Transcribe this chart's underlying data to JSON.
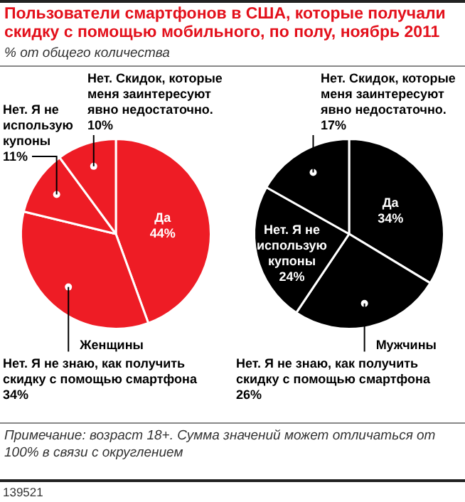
{
  "chart_data": [
    {
      "type": "pie",
      "title": "Пользователи смартфонов в США, которые получали скидку с помощью мобильного, по полу, ноябрь 2011",
      "subtitle": "% от общего количества",
      "xlabel": "Женщины",
      "categories": [
        "Да",
        "Нет. Я не знаю, как получить скидку с помощью смартфона",
        "Нет. Я не использую купоны",
        "Нет. Скидок, которые меня заинтересуют явно недостаточно."
      ],
      "values": [
        44,
        34,
        11,
        10
      ],
      "value_labels": [
        "44%",
        "34%",
        "11%",
        "10%"
      ],
      "colors": [
        "#ee1c25",
        "#ee1c25",
        "#ee1c25",
        "#ee1c25"
      ]
    },
    {
      "type": "pie",
      "xlabel": "Мужчины",
      "categories": [
        "Да",
        "Нет. Я не знаю, как получить скидку с помощью смартфона",
        "Нет. Я не использую купоны",
        "Нет. Скидок, которые меня заинтересуют явно недостаточно."
      ],
      "values": [
        34,
        26,
        24,
        17
      ],
      "value_labels": [
        "34%",
        "26%",
        "24%",
        "17%"
      ],
      "colors": [
        "#000000",
        "#000000",
        "#000000",
        "#000000"
      ],
      "annotations": [
        "Примечание: возраст 18+. Сумма значений может отличаться от 100% в связи с округлением",
        "139521"
      ]
    }
  ]
}
